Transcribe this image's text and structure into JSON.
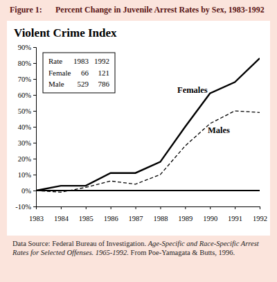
{
  "chart_data": {
    "type": "line",
    "figure_label": "Figure 1:",
    "figure_title": "Percent Change in Juvenile Arrest Rates by Sex, 1983-1992",
    "title": "Violent Crime Index",
    "x": [
      1983,
      1984,
      1985,
      1986,
      1987,
      1988,
      1989,
      1990,
      1991,
      1992
    ],
    "xlim": [
      1983,
      1992
    ],
    "xticks": [
      1983,
      1984,
      1985,
      1986,
      1987,
      1988,
      1989,
      1990,
      1991,
      1992
    ],
    "ylim": [
      -10,
      90
    ],
    "yticks": [
      {
        "value": -10,
        "label": "-10%"
      },
      {
        "value": 0,
        "label": "0%"
      },
      {
        "value": 10,
        "label": "10%"
      },
      {
        "value": 20,
        "label": "20%"
      },
      {
        "value": 30,
        "label": "30%"
      },
      {
        "value": 40,
        "label": "40%"
      },
      {
        "value": 50,
        "label": "50%"
      },
      {
        "value": 60,
        "label": "60%"
      },
      {
        "value": 70,
        "label": "70%"
      },
      {
        "value": 80,
        "label": "80%"
      },
      {
        "value": 90,
        "label": "90%"
      }
    ],
    "grid": false,
    "series": [
      {
        "name": "Females",
        "color": "#000000",
        "line_style": "solid",
        "values": [
          0,
          3,
          3,
          11,
          11,
          18,
          40,
          61,
          68,
          83
        ]
      },
      {
        "name": "Males",
        "color": "#000000",
        "line_style": "dashed",
        "values": [
          0,
          -1,
          2,
          6,
          4,
          10,
          28,
          42,
          50,
          49
        ]
      }
    ],
    "table": {
      "header": [
        "Rate",
        "1983",
        "1992"
      ],
      "rows": [
        [
          "Female",
          66,
          121
        ],
        [
          "Male",
          529,
          786
        ]
      ]
    },
    "source": {
      "prefix": "Data Source: Federal Bureau of Investigation.",
      "work": "Age-Specific and Race-Specific Arrest Rates for Selected Offenses. 1965-1992.",
      "suffix": "From Poe-Yamagata & Butts, 1996."
    }
  }
}
